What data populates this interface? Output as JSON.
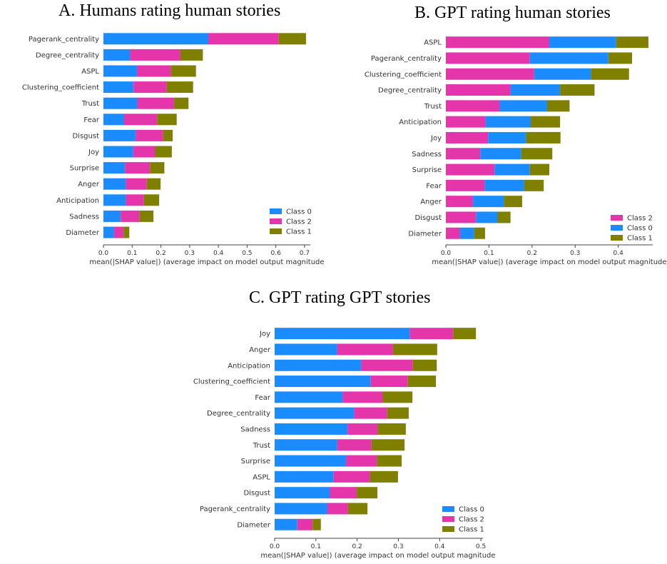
{
  "colors": {
    "Class 0": "#1a8cff",
    "Class 1": "#808000",
    "Class 2": "#e535ab",
    "axis": "#444444",
    "text": "#333333"
  },
  "chart_data": [
    {
      "type": "bar",
      "stacked": true,
      "orientation": "horizontal",
      "title": "A. Humans rating human stories",
      "xlabel": "mean(|SHAP value|) (average impact on model output magnitude",
      "xlim": [
        0,
        0.72
      ],
      "xticks": [
        0.0,
        0.1,
        0.2,
        0.3,
        0.4,
        0.5,
        0.6,
        0.7
      ],
      "xtick_labels": [
        "0.0",
        "0.1",
        "0.2",
        "0.3",
        "0.4",
        "0.5",
        "0.6",
        "0.7"
      ],
      "grid": false,
      "legend_position": "bottom-right",
      "legend": [
        "Class 0",
        "Class 2",
        "Class 1"
      ],
      "categories": [
        "Pagerank_centrality",
        "Degree_centrality",
        "ASPL",
        "Clustering_coefficient",
        "Trust",
        "Fear",
        "Disgust",
        "Joy",
        "Surprise",
        "Anger",
        "Anticipation",
        "Sadness",
        "Diameter"
      ],
      "series": [
        {
          "name": "Class 0",
          "values": [
            0.365,
            0.093,
            0.117,
            0.105,
            0.118,
            0.072,
            0.112,
            0.104,
            0.075,
            0.078,
            0.078,
            0.06,
            0.037
          ]
        },
        {
          "name": "Class 2",
          "values": [
            0.245,
            0.175,
            0.118,
            0.115,
            0.128,
            0.115,
            0.096,
            0.076,
            0.087,
            0.073,
            0.063,
            0.066,
            0.033
          ]
        },
        {
          "name": "Class 1",
          "values": [
            0.095,
            0.078,
            0.087,
            0.092,
            0.05,
            0.068,
            0.033,
            0.058,
            0.05,
            0.048,
            0.053,
            0.048,
            0.02
          ]
        }
      ]
    },
    {
      "type": "bar",
      "stacked": true,
      "orientation": "horizontal",
      "title": "B. GPT rating human stories",
      "xlabel": "mean(|SHAP value|) (average impact on model output magnitude",
      "xlim": [
        0,
        0.48
      ],
      "xticks": [
        0.0,
        0.1,
        0.2,
        0.3,
        0.4
      ],
      "xtick_labels": [
        "0.0",
        "0.1",
        "0.2",
        "0.3",
        "0.4"
      ],
      "grid": false,
      "legend_position": "bottom-right",
      "legend": [
        "Class 2",
        "Class 0",
        "Class 1"
      ],
      "categories": [
        "ASPL",
        "Pagerank_centrality",
        "Clustering_coefficient",
        "Degree_centrality",
        "Trust",
        "Anticipation",
        "Joy",
        "Sadness",
        "Surprise",
        "Fear",
        "Anger",
        "Disgust",
        "Diameter"
      ],
      "series": [
        {
          "name": "Class 2",
          "values": [
            0.24,
            0.195,
            0.205,
            0.15,
            0.125,
            0.092,
            0.098,
            0.08,
            0.113,
            0.09,
            0.063,
            0.07,
            0.033
          ]
        },
        {
          "name": "Class 0",
          "values": [
            0.155,
            0.182,
            0.132,
            0.115,
            0.11,
            0.105,
            0.088,
            0.095,
            0.082,
            0.092,
            0.072,
            0.05,
            0.033
          ]
        },
        {
          "name": "Class 1",
          "values": [
            0.075,
            0.055,
            0.088,
            0.08,
            0.052,
            0.068,
            0.08,
            0.072,
            0.045,
            0.045,
            0.042,
            0.03,
            0.025
          ]
        }
      ]
    },
    {
      "type": "bar",
      "stacked": true,
      "orientation": "horizontal",
      "title": "C. GPT rating GPT stories",
      "xlabel": "mean(|SHAP value|) (average impact on model output magnitude",
      "xlim": [
        0,
        0.505
      ],
      "xticks": [
        0.0,
        0.1,
        0.2,
        0.3,
        0.4,
        0.5
      ],
      "xtick_labels": [
        "0.0",
        "0.1",
        "0.2",
        "0.3",
        "0.4",
        "0.5"
      ],
      "grid": false,
      "legend_position": "bottom-right",
      "legend": [
        "Class 0",
        "Class 2",
        "Class 1"
      ],
      "categories": [
        "Joy",
        "Anger",
        "Anticipation",
        "Clustering_coefficient",
        "Fear",
        "Degree_centrality",
        "Sadness",
        "Trust",
        "Surprise",
        "ASPL",
        "Disgust",
        "Pagerank_centrality",
        "Diameter"
      ],
      "series": [
        {
          "name": "Class 0",
          "values": [
            0.328,
            0.152,
            0.21,
            0.233,
            0.165,
            0.193,
            0.177,
            0.152,
            0.173,
            0.143,
            0.134,
            0.128,
            0.055
          ]
        },
        {
          "name": "Class 2",
          "values": [
            0.105,
            0.135,
            0.125,
            0.09,
            0.097,
            0.08,
            0.073,
            0.083,
            0.075,
            0.088,
            0.065,
            0.05,
            0.037
          ]
        },
        {
          "name": "Class 1",
          "values": [
            0.055,
            0.107,
            0.058,
            0.068,
            0.072,
            0.052,
            0.068,
            0.08,
            0.06,
            0.068,
            0.05,
            0.047,
            0.02
          ]
        }
      ]
    }
  ]
}
